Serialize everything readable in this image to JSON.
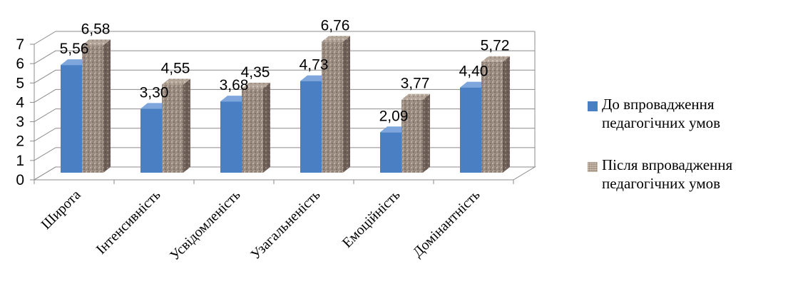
{
  "chart_data": {
    "type": "bar",
    "categories": [
      "Широта",
      "Інтенсивність",
      "Усвідомленість",
      "Узагальненість",
      "Емоційність",
      "Домінантність"
    ],
    "series": [
      {
        "name": "До впровадження педагогічних умов",
        "values": [
          5.56,
          3.3,
          3.68,
          4.73,
          2.09,
          4.4
        ],
        "labels": [
          "5,56",
          "3,30",
          "3,68",
          "4,73",
          "2,09",
          "4,40"
        ]
      },
      {
        "name": "Після впровадження педагогічних умов",
        "values": [
          6.58,
          4.55,
          4.35,
          6.76,
          3.77,
          5.72
        ],
        "labels": [
          "6,58",
          "4,55",
          "4,35",
          "6,76",
          "3,77",
          "5,72"
        ]
      }
    ],
    "y_ticks": [
      "0",
      "1",
      "2",
      "3",
      "4",
      "5",
      "6",
      "7"
    ],
    "ylim": [
      0,
      7
    ],
    "grid": true,
    "legend_position": "right",
    "style": "3d-clustered-column",
    "colors": {
      "series1": "#4a7fc4",
      "series2": "#8e7d72"
    }
  },
  "legend": {
    "items": [
      {
        "line1": "До впровадження",
        "line2": "педагогічних умов"
      },
      {
        "line1": "Після впровадження",
        "line2": "педагогічних умов"
      }
    ]
  }
}
